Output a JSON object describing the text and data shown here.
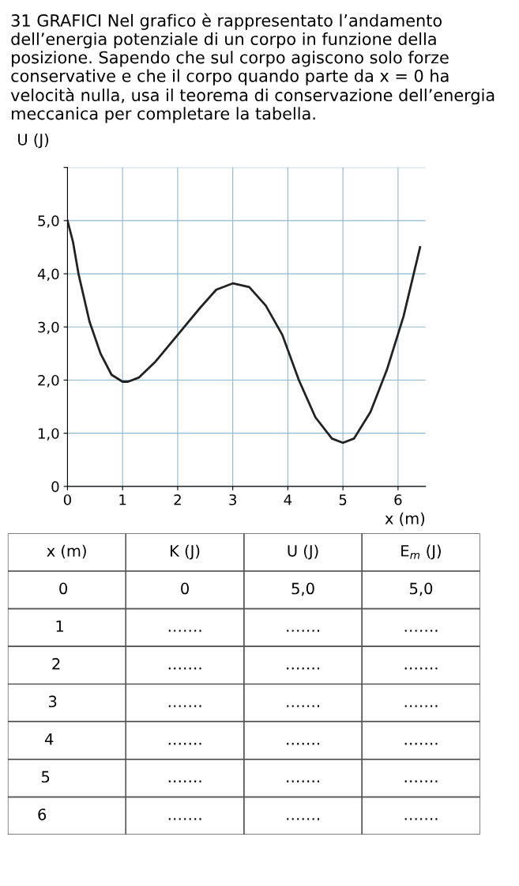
{
  "chart_data": [
    {
      "type": "line",
      "title": "31 GRAFICI Nel grafico è rappresentato l’andamento dell’energia potenziale di un corpo in funzione della posizione. Sapendo che sul corpo agiscono solo forze conservative e che il corpo quando parte da x = 0 ha velocità nulla, usa il teorema di conservazione dell’energia meccanica per completare la tabella.",
      "xlabel": "x (m)",
      "ylabel": "U (J)",
      "x": [
        0,
        0.1,
        0.2,
        0.4,
        0.6,
        0.8,
        1.0,
        1.1,
        1.3,
        1.6,
        2.0,
        2.4,
        2.7,
        3.0,
        3.3,
        3.6,
        3.9,
        4.2,
        4.5,
        4.8,
        5.0,
        5.2,
        5.5,
        5.8,
        6.1,
        6.4
      ],
      "series": [
        {
          "color": "#222222",
          "values": [
            5.0,
            4.6,
            4.0,
            3.1,
            2.5,
            2.1,
            1.97,
            1.97,
            2.05,
            2.35,
            2.85,
            3.35,
            3.7,
            3.82,
            3.75,
            3.4,
            2.85,
            2.0,
            1.3,
            0.9,
            0.82,
            0.9,
            1.4,
            2.2,
            3.2,
            4.5
          ]
        }
      ],
      "xlim": [
        0,
        6.5
      ],
      "ylim": [
        0,
        6
      ],
      "xticks": [
        0,
        1,
        2,
        3,
        4,
        5,
        6
      ],
      "yticks": [
        {
          "value": 0,
          "label": "0"
        },
        {
          "value": 1,
          "label": "1,0"
        },
        {
          "value": 2,
          "label": "2,0"
        },
        {
          "value": 3,
          "label": "3,0"
        },
        {
          "value": 4,
          "label": "4,0"
        },
        {
          "value": 5,
          "label": "5,0"
        },
        {
          "value": 6,
          "label": null
        }
      ],
      "grid": true,
      "marker": "none",
      "line_style": "solid"
    },
    {
      "type": "other",
      "categories": [
        "x (m)",
        "K (J)",
        "U (J)",
        "E$_{m}$ (J)"
      ],
      "annotations": [
        "0",
        "0",
        "5,0",
        "5,0",
        "1",
        "…….",
        "…….",
        "…….",
        "2",
        "…….",
        "…….",
        "…….",
        "3",
        "…….",
        "…….",
        "…….",
        "4",
        "…….",
        "…….",
        "…….",
        "5",
        "…….",
        "…….",
        "…….",
        "6",
        "…….",
        "…….",
        "……."
      ]
    }
  ]
}
